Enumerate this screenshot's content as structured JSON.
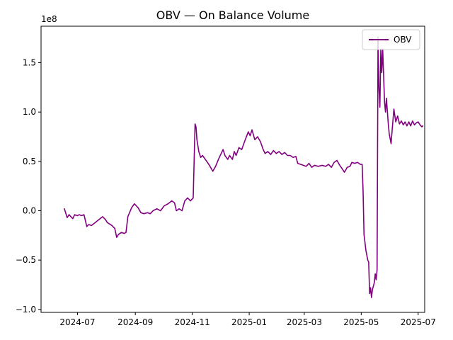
{
  "chart_data": {
    "type": "line",
    "title": "OBV — On Balance Volume",
    "xlabel": "",
    "ylabel": "",
    "y_offset_label": "1e8",
    "grid": false,
    "legend_position": "top-right",
    "xlim": [
      "2024-05-23",
      "2025-07-08"
    ],
    "ylim": [
      -1.03,
      1.87
    ],
    "x_ticks": [
      {
        "value": "2024-07-01",
        "label": "2024-07"
      },
      {
        "value": "2024-09-01",
        "label": "2024-09"
      },
      {
        "value": "2024-11-01",
        "label": "2024-11"
      },
      {
        "value": "2025-01-01",
        "label": "2025-01"
      },
      {
        "value": "2025-03-01",
        "label": "2025-03"
      },
      {
        "value": "2025-05-01",
        "label": "2025-05"
      },
      {
        "value": "2025-07-01",
        "label": "2025-07"
      }
    ],
    "y_ticks": [
      {
        "value": -1.0,
        "label": "−1.0"
      },
      {
        "value": -0.5,
        "label": "−0.5"
      },
      {
        "value": 0.0,
        "label": "0.0"
      },
      {
        "value": 0.5,
        "label": "0.5"
      },
      {
        "value": 1.0,
        "label": "1.0"
      },
      {
        "value": 1.5,
        "label": "1.5"
      }
    ],
    "series": [
      {
        "name": "OBV",
        "color": "#800080",
        "points": [
          [
            "2024-06-17",
            0.02
          ],
          [
            "2024-06-20",
            -0.07
          ],
          [
            "2024-06-22",
            -0.04
          ],
          [
            "2024-06-26",
            -0.08
          ],
          [
            "2024-06-28",
            -0.04
          ],
          [
            "2024-07-01",
            -0.05
          ],
          [
            "2024-07-03",
            -0.04
          ],
          [
            "2024-07-05",
            -0.05
          ],
          [
            "2024-07-08",
            -0.04
          ],
          [
            "2024-07-11",
            -0.16
          ],
          [
            "2024-07-13",
            -0.14
          ],
          [
            "2024-07-16",
            -0.15
          ],
          [
            "2024-07-20",
            -0.12
          ],
          [
            "2024-07-24",
            -0.09
          ],
          [
            "2024-07-28",
            -0.06
          ],
          [
            "2024-07-31",
            -0.09
          ],
          [
            "2024-08-02",
            -0.12
          ],
          [
            "2024-08-07",
            -0.15
          ],
          [
            "2024-08-10",
            -0.18
          ],
          [
            "2024-08-12",
            -0.27
          ],
          [
            "2024-08-14",
            -0.24
          ],
          [
            "2024-08-17",
            -0.22
          ],
          [
            "2024-08-20",
            -0.23
          ],
          [
            "2024-08-22",
            -0.22
          ],
          [
            "2024-08-24",
            -0.06
          ],
          [
            "2024-08-28",
            0.03
          ],
          [
            "2024-08-31",
            0.07
          ],
          [
            "2024-09-04",
            0.03
          ],
          [
            "2024-09-07",
            -0.02
          ],
          [
            "2024-09-10",
            -0.03
          ],
          [
            "2024-09-14",
            -0.02
          ],
          [
            "2024-09-17",
            -0.03
          ],
          [
            "2024-09-20",
            0.0
          ],
          [
            "2024-09-24",
            0.02
          ],
          [
            "2024-09-28",
            0.0
          ],
          [
            "2024-10-02",
            0.05
          ],
          [
            "2024-10-06",
            0.07
          ],
          [
            "2024-10-10",
            0.1
          ],
          [
            "2024-10-13",
            0.08
          ],
          [
            "2024-10-15",
            0.0
          ],
          [
            "2024-10-18",
            0.02
          ],
          [
            "2024-10-21",
            0.0
          ],
          [
            "2024-10-24",
            0.1
          ],
          [
            "2024-10-27",
            0.13
          ],
          [
            "2024-10-30",
            0.1
          ],
          [
            "2024-11-02",
            0.13
          ],
          [
            "2024-11-04",
            0.88
          ],
          [
            "2024-11-05",
            0.85
          ],
          [
            "2024-11-06",
            0.72
          ],
          [
            "2024-11-08",
            0.6
          ],
          [
            "2024-11-10",
            0.54
          ],
          [
            "2024-11-12",
            0.56
          ],
          [
            "2024-11-15",
            0.52
          ],
          [
            "2024-11-18",
            0.48
          ],
          [
            "2024-11-20",
            0.45
          ],
          [
            "2024-11-23",
            0.4
          ],
          [
            "2024-11-26",
            0.45
          ],
          [
            "2024-11-29",
            0.52
          ],
          [
            "2024-12-02",
            0.58
          ],
          [
            "2024-12-04",
            0.62
          ],
          [
            "2024-12-06",
            0.56
          ],
          [
            "2024-12-09",
            0.52
          ],
          [
            "2024-12-11",
            0.56
          ],
          [
            "2024-12-14",
            0.52
          ],
          [
            "2024-12-16",
            0.6
          ],
          [
            "2024-12-18",
            0.56
          ],
          [
            "2024-12-21",
            0.64
          ],
          [
            "2024-12-24",
            0.62
          ],
          [
            "2024-12-27",
            0.7
          ],
          [
            "2024-12-29",
            0.75
          ],
          [
            "2024-12-31",
            0.8
          ],
          [
            "2025-01-02",
            0.76
          ],
          [
            "2025-01-04",
            0.82
          ],
          [
            "2025-01-07",
            0.72
          ],
          [
            "2025-01-10",
            0.75
          ],
          [
            "2025-01-13",
            0.7
          ],
          [
            "2025-01-16",
            0.62
          ],
          [
            "2025-01-18",
            0.58
          ],
          [
            "2025-01-21",
            0.6
          ],
          [
            "2025-01-24",
            0.57
          ],
          [
            "2025-01-27",
            0.61
          ],
          [
            "2025-01-30",
            0.58
          ],
          [
            "2025-02-02",
            0.6
          ],
          [
            "2025-02-05",
            0.57
          ],
          [
            "2025-02-08",
            0.59
          ],
          [
            "2025-02-11",
            0.56
          ],
          [
            "2025-02-14",
            0.56
          ],
          [
            "2025-02-17",
            0.54
          ],
          [
            "2025-02-20",
            0.55
          ],
          [
            "2025-02-22",
            0.48
          ],
          [
            "2025-02-25",
            0.47
          ],
          [
            "2025-02-28",
            0.46
          ],
          [
            "2025-03-03",
            0.45
          ],
          [
            "2025-03-06",
            0.48
          ],
          [
            "2025-03-09",
            0.44
          ],
          [
            "2025-03-12",
            0.46
          ],
          [
            "2025-03-16",
            0.45
          ],
          [
            "2025-03-20",
            0.46
          ],
          [
            "2025-03-24",
            0.45
          ],
          [
            "2025-03-27",
            0.47
          ],
          [
            "2025-03-30",
            0.44
          ],
          [
            "2025-04-02",
            0.49
          ],
          [
            "2025-04-05",
            0.51
          ],
          [
            "2025-04-08",
            0.46
          ],
          [
            "2025-04-11",
            0.42
          ],
          [
            "2025-04-13",
            0.39
          ],
          [
            "2025-04-16",
            0.44
          ],
          [
            "2025-04-19",
            0.45
          ],
          [
            "2025-04-21",
            0.49
          ],
          [
            "2025-04-24",
            0.48
          ],
          [
            "2025-04-27",
            0.49
          ],
          [
            "2025-04-30",
            0.47
          ],
          [
            "2025-05-02",
            0.47
          ],
          [
            "2025-05-03",
            0.2
          ],
          [
            "2025-05-04",
            -0.24
          ],
          [
            "2025-05-06",
            -0.4
          ],
          [
            "2025-05-08",
            -0.5
          ],
          [
            "2025-05-09",
            -0.52
          ],
          [
            "2025-05-10",
            -0.84
          ],
          [
            "2025-05-11",
            -0.78
          ],
          [
            "2025-05-12",
            -0.88
          ],
          [
            "2025-05-13",
            -0.8
          ],
          [
            "2025-05-15",
            -0.73
          ],
          [
            "2025-05-16",
            -0.64
          ],
          [
            "2025-05-17",
            -0.7
          ],
          [
            "2025-05-18",
            -0.6
          ],
          [
            "2025-05-19",
            1.76
          ],
          [
            "2025-05-20",
            1.25
          ],
          [
            "2025-05-21",
            1.05
          ],
          [
            "2025-05-22",
            1.64
          ],
          [
            "2025-05-23",
            1.4
          ],
          [
            "2025-05-24",
            1.64
          ],
          [
            "2025-05-26",
            1.1
          ],
          [
            "2025-05-27",
            1.0
          ],
          [
            "2025-05-28",
            1.14
          ],
          [
            "2025-05-30",
            0.88
          ],
          [
            "2025-05-31",
            0.78
          ],
          [
            "2025-06-02",
            0.68
          ],
          [
            "2025-06-03",
            0.8
          ],
          [
            "2025-06-05",
            1.03
          ],
          [
            "2025-06-07",
            0.9
          ],
          [
            "2025-06-09",
            0.96
          ],
          [
            "2025-06-11",
            0.88
          ],
          [
            "2025-06-13",
            0.91
          ],
          [
            "2025-06-15",
            0.87
          ],
          [
            "2025-06-17",
            0.9
          ],
          [
            "2025-06-19",
            0.86
          ],
          [
            "2025-06-21",
            0.9
          ],
          [
            "2025-06-23",
            0.86
          ],
          [
            "2025-06-25",
            0.91
          ],
          [
            "2025-06-27",
            0.87
          ],
          [
            "2025-06-29",
            0.89
          ],
          [
            "2025-07-01",
            0.9
          ],
          [
            "2025-07-03",
            0.87
          ],
          [
            "2025-07-05",
            0.85
          ],
          [
            "2025-07-06",
            0.86
          ]
        ]
      }
    ]
  }
}
